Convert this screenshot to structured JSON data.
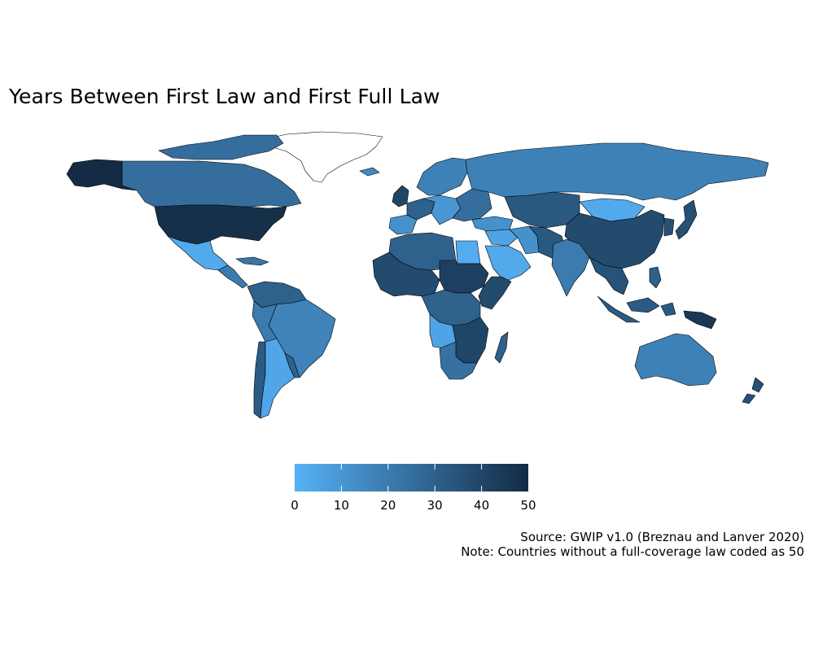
{
  "title": "Years Between First Law and First Full Law",
  "legend": {
    "min": 0,
    "max": 50,
    "ticks": [
      "0",
      "10",
      "20",
      "30",
      "40",
      "50"
    ],
    "color_low": "#56b1f7",
    "color_high": "#132b43"
  },
  "source": "Source: GWIP v1.0 (Breznau and Lanver 2020)",
  "note": "Note: Countries without a full-coverage law coded as 50",
  "regions": [
    {
      "id": "alaska",
      "value": 50
    },
    {
      "id": "canada",
      "value": 25
    },
    {
      "id": "usa",
      "value": 48
    },
    {
      "id": "mexico",
      "value": 3
    },
    {
      "id": "central-america",
      "value": 20
    },
    {
      "id": "caribbean",
      "value": 22
    },
    {
      "id": "greenland",
      "value": null
    },
    {
      "id": "arctic-islands",
      "value": 25
    },
    {
      "id": "northern-south-america",
      "value": 30
    },
    {
      "id": "brazil",
      "value": 17
    },
    {
      "id": "peru-bolivia",
      "value": 20
    },
    {
      "id": "chile",
      "value": 32
    },
    {
      "id": "argentina",
      "value": 4
    },
    {
      "id": "uruguay-paraguay",
      "value": 30
    },
    {
      "id": "scandinavia",
      "value": 18
    },
    {
      "id": "iceland",
      "value": 15
    },
    {
      "id": "uk-ireland",
      "value": 40
    },
    {
      "id": "western-europe",
      "value": 30
    },
    {
      "id": "central-europe",
      "value": 10
    },
    {
      "id": "eastern-europe",
      "value": 25
    },
    {
      "id": "iberia",
      "value": 12
    },
    {
      "id": "russia",
      "value": 18
    },
    {
      "id": "kazakhstan-central-asia",
      "value": 33
    },
    {
      "id": "mongolia",
      "value": 3
    },
    {
      "id": "china",
      "value": 38
    },
    {
      "id": "korea-japan",
      "value": 36
    },
    {
      "id": "turkey-caucasus",
      "value": 12
    },
    {
      "id": "middle-east",
      "value": 5
    },
    {
      "id": "arabia",
      "value": 3
    },
    {
      "id": "iran",
      "value": 12
    },
    {
      "id": "afghanistan-pakistan",
      "value": 33
    },
    {
      "id": "india",
      "value": 20
    },
    {
      "id": "southeast-asia",
      "value": 35
    },
    {
      "id": "indonesia",
      "value": 32
    },
    {
      "id": "philippines",
      "value": 30
    },
    {
      "id": "png",
      "value": 45
    },
    {
      "id": "north-africa",
      "value": 30
    },
    {
      "id": "egypt",
      "value": 2
    },
    {
      "id": "west-africa",
      "value": 38
    },
    {
      "id": "sahel-east",
      "value": 42
    },
    {
      "id": "central-africa",
      "value": 30
    },
    {
      "id": "horn-of-africa",
      "value": 38
    },
    {
      "id": "angola-congo",
      "value": 5
    },
    {
      "id": "southeast-africa",
      "value": 40
    },
    {
      "id": "southern-africa",
      "value": 24
    },
    {
      "id": "madagascar",
      "value": 30
    },
    {
      "id": "australia",
      "value": 18
    },
    {
      "id": "new-zealand",
      "value": 36
    }
  ]
}
